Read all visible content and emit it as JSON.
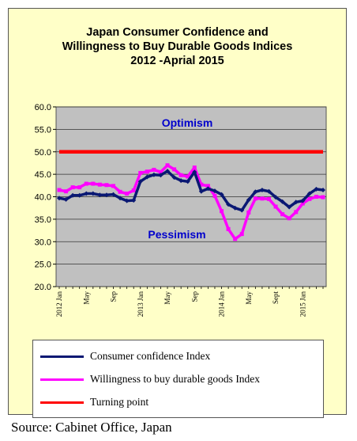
{
  "title_lines": [
    "Japan Consumer Confidence and",
    "Willingness to Buy Durable Goods Indices",
    "2012 -Aprial  2015"
  ],
  "annotations": {
    "upper": "Optimism",
    "lower": "Pessimism"
  },
  "source": "Source: Cabinet Office, Japan",
  "colors": {
    "background": "#ffffc8",
    "plot_area": "#c0c0c0",
    "consumer_confidence": "#0a1873",
    "durable_goods": "#ff00ff",
    "turning_point": "#ff0000",
    "annotation_text": "#0000cc"
  },
  "chart_data": {
    "type": "line",
    "title": "Japan Consumer Confidence and Willingness to Buy Durable Goods Indices 2012 -Aprial  2015",
    "xlabel": "",
    "ylabel": "",
    "ylim": [
      20,
      60
    ],
    "yticks": [
      "20.0",
      "25.0",
      "30.0",
      "35.0",
      "40.0",
      "45.0",
      "50.0",
      "55.0",
      "60.0"
    ],
    "x": [
      "2012 Jan",
      "Feb",
      "Mar",
      "Apr",
      "May",
      "Jun",
      "Jul",
      "Aug",
      "Sep",
      "Oct",
      "Nov",
      "Dec",
      "2013 Jan",
      "Feb",
      "Mar",
      "Apr",
      "May",
      "Jun",
      "Jul",
      "Aug",
      "Sep",
      "Oct",
      "Nov",
      "Dec",
      "2014 Jan",
      "Feb",
      "Mar",
      "Apr",
      "May",
      "Jun",
      "Jul",
      "Aug",
      "Sep",
      "Oct",
      "Nov",
      "Dec",
      "2015 Jan",
      "Feb",
      "Mar",
      "Apr"
    ],
    "xtick_labels": [
      {
        "index": 0,
        "label": "2012 Jan"
      },
      {
        "index": 4,
        "label": "May"
      },
      {
        "index": 8,
        "label": "Sep"
      },
      {
        "index": 12,
        "label": "2013 Jan"
      },
      {
        "index": 16,
        "label": "May"
      },
      {
        "index": 20,
        "label": "Sep"
      },
      {
        "index": 24,
        "label": "2014 Jan"
      },
      {
        "index": 28,
        "label": "May"
      },
      {
        "index": 32,
        "label": "Sept"
      },
      {
        "index": 36,
        "label": "2015 Jan"
      }
    ],
    "series": [
      {
        "name": "Consumer confidence Index",
        "values": [
          39.7,
          39.4,
          40.3,
          40.3,
          40.7,
          40.7,
          40.4,
          40.4,
          40.5,
          39.7,
          39.1,
          39.2,
          43.4,
          44.4,
          44.9,
          44.8,
          45.7,
          44.3,
          43.6,
          43.4,
          45.5,
          41.2,
          41.8,
          41.3,
          40.5,
          38.3,
          37.5,
          37.0,
          39.3,
          41.1,
          41.5,
          41.2,
          39.9,
          38.9,
          37.7,
          38.8,
          39.1,
          40.7,
          41.7,
          41.5
        ]
      },
      {
        "name": "Willingness to buy durable goods Index",
        "values": [
          41.5,
          41.2,
          42.1,
          42.1,
          42.9,
          42.9,
          42.7,
          42.6,
          42.4,
          41.1,
          40.7,
          41.4,
          45.3,
          45.6,
          46.0,
          45.5,
          47.0,
          46.1,
          44.8,
          44.5,
          46.5,
          42.7,
          42.4,
          40.2,
          36.8,
          32.8,
          30.6,
          31.7,
          36.5,
          39.6,
          39.6,
          39.5,
          37.8,
          36.1,
          35.2,
          36.6,
          38.5,
          39.5,
          40.0,
          39.9
        ]
      },
      {
        "name": "Turning point",
        "values": [
          50,
          50,
          50,
          50,
          50,
          50,
          50,
          50,
          50,
          50,
          50,
          50,
          50,
          50,
          50,
          50,
          50,
          50,
          50,
          50,
          50,
          50,
          50,
          50,
          50,
          50,
          50,
          50,
          50,
          50,
          50,
          50,
          50,
          50,
          50,
          50,
          50,
          50,
          50,
          50
        ]
      }
    ],
    "grid": true,
    "legend_placement": "bottom"
  }
}
